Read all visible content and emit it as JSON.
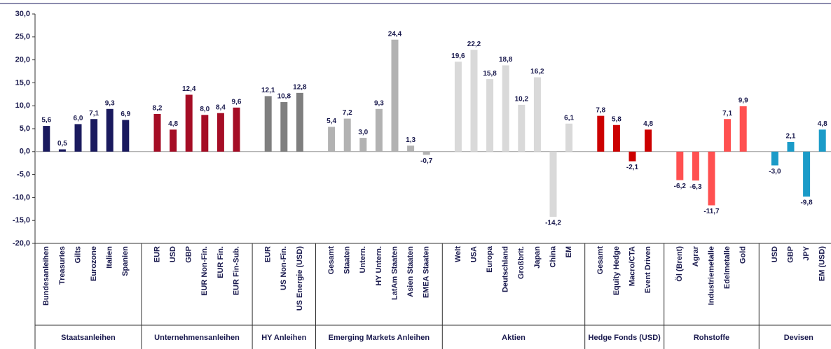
{
  "chart_data": {
    "type": "bar",
    "ylim": [
      -20,
      30
    ],
    "yticks": [
      {
        "value": -20,
        "label": "-20,0"
      },
      {
        "value": -15,
        "label": "-15,0"
      },
      {
        "value": -10,
        "label": "-10,0"
      },
      {
        "value": -5,
        "label": "-5,0"
      },
      {
        "value": 0,
        "label": "0,0"
      },
      {
        "value": 5,
        "label": "5,0"
      },
      {
        "value": 10,
        "label": "10,0"
      },
      {
        "value": 15,
        "label": "15,0"
      },
      {
        "value": 20,
        "label": "20,0"
      },
      {
        "value": 25,
        "label": "25,0"
      },
      {
        "value": 30,
        "label": "30,0"
      }
    ],
    "groups": [
      {
        "name": "Staatsanleihen",
        "color": "#1a1a5e",
        "categories": [
          "Bundesanleihen",
          "Treasuries",
          "Gilts",
          "Eurozone",
          "Italien",
          "Spanien"
        ],
        "values": [
          5.6,
          0.5,
          6.0,
          7.1,
          9.3,
          6.9
        ],
        "value_labels": [
          "5,6",
          "0,5",
          "6,0",
          "7,1",
          "9,3",
          "6,9"
        ]
      },
      {
        "name": "Unternehmensanleihen",
        "color": "#a50d25",
        "categories": [
          "EUR",
          "USD",
          "GBP",
          "EUR Non-Fin.",
          "EUR Fin.",
          "EUR Fin-Sub."
        ],
        "values": [
          8.2,
          4.8,
          12.4,
          8.0,
          8.4,
          9.6
        ],
        "value_labels": [
          "8,2",
          "4,8",
          "12,4",
          "8,0",
          "8,4",
          "9,6"
        ]
      },
      {
        "name": "HY Anleihen",
        "color": "#7f7f7f",
        "categories": [
          "EUR",
          "US Non-Fin.",
          "US Energie (USD)"
        ],
        "values": [
          12.1,
          10.8,
          12.8
        ],
        "value_labels": [
          "12,1",
          "10,8",
          "12,8"
        ]
      },
      {
        "name": "Emerging Markets Anleihen",
        "color": "#b2b2b2",
        "categories": [
          "Gesamt",
          "Staaten",
          "Untern.",
          "HY Untern.",
          "LatAm Staaten",
          "Asien Staaten",
          "EMEA Staaten"
        ],
        "values": [
          5.4,
          7.2,
          3.0,
          9.3,
          24.4,
          1.3,
          -0.7
        ],
        "value_labels": [
          "5,4",
          "7,2",
          "3,0",
          "9,3",
          "24,4",
          "1,3",
          "-0,7"
        ]
      },
      {
        "name": "Aktien",
        "color": "#d9d9d9",
        "categories": [
          "Welt",
          "USA",
          "Europa",
          "Deutschland",
          "Großbrit.",
          "Japan",
          "China",
          "EM"
        ],
        "values": [
          19.6,
          22.2,
          15.8,
          18.8,
          10.2,
          16.2,
          -14.2,
          6.1
        ],
        "value_labels": [
          "19,6",
          "22,2",
          "15,8",
          "18,8",
          "10,2",
          "16,2",
          "-14,2",
          "6,1"
        ]
      },
      {
        "name": "Hedge Fonds (USD)",
        "color": "#cc0000",
        "categories": [
          "Gesamt",
          "Equity Hedge",
          "Macro/CTA",
          "Event Driven"
        ],
        "values": [
          7.8,
          5.8,
          -2.1,
          4.8
        ],
        "value_labels": [
          "7,8",
          "5,8",
          "-2,1",
          "4,8"
        ]
      },
      {
        "name": "Rohstoffe",
        "color": "#ff5050",
        "categories": [
          "Öl (Brent)",
          "Agrar",
          "Industriemetalle",
          "Edelmetalle",
          "Gold"
        ],
        "values": [
          -6.2,
          -6.3,
          -11.7,
          7.1,
          9.9
        ],
        "value_labels": [
          "-6,2",
          "-6,3",
          "-11,7",
          "7,1",
          "9,9"
        ]
      },
      {
        "name": "Devisen",
        "color": "#1b9bc8",
        "categories": [
          "USD",
          "GBP",
          "JPY",
          "EM (USD)"
        ],
        "values": [
          -3.0,
          2.1,
          -9.8,
          4.8
        ],
        "value_labels": [
          "-3,0",
          "2,1",
          "-9,8",
          "4,8"
        ]
      }
    ]
  }
}
